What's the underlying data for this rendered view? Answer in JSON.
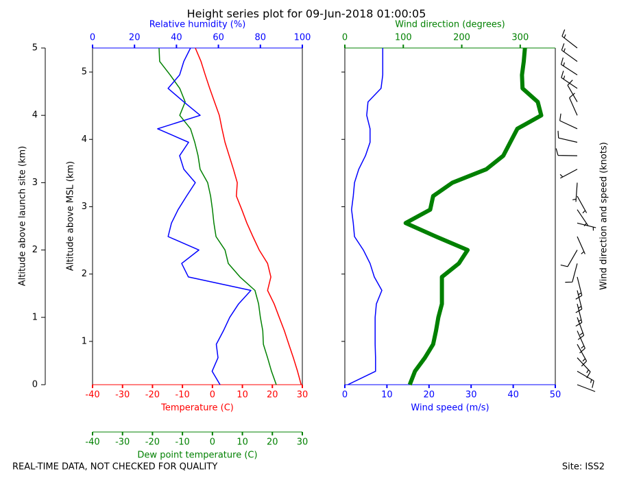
{
  "title": "Height series plot for 09-Jun-2018 01:00:05",
  "notes": {
    "left": "REAL-TIME DATA, NOT CHECKED FOR QUALITY",
    "right": "Site: ISS2"
  },
  "chart_data": [
    {
      "type": "line",
      "y": [
        0,
        0.2,
        0.4,
        0.6,
        0.8,
        1.0,
        1.2,
        1.4,
        1.6,
        1.8,
        2.0,
        2.2,
        2.4,
        2.6,
        2.8,
        3.0,
        3.2,
        3.4,
        3.6,
        3.8,
        4.0,
        4.2,
        4.4,
        4.6,
        4.8,
        5.0
      ],
      "ylabel": "Altitude above launch site (km)",
      "ylim": [
        0,
        5
      ],
      "yticks": [
        0,
        1,
        2,
        3,
        4,
        5
      ],
      "y2label": "Altitude above MSL (km)",
      "y2lim": [
        0.357,
        5.357
      ],
      "y2ticks": [
        1,
        2,
        3,
        4,
        5
      ],
      "axes": [
        {
          "label": "Temperature (C)",
          "position": "bottom",
          "color": "#ff0000",
          "xlim": [
            -40,
            30
          ],
          "xticks": [
            -40,
            -30,
            -20,
            -10,
            0,
            10,
            20,
            30
          ]
        },
        {
          "label": "Relative humidity (%)",
          "position": "top",
          "color": "#0000ff",
          "xlim": [
            0,
            100
          ],
          "xticks": [
            0,
            20,
            40,
            60,
            80,
            100
          ]
        },
        {
          "label": "Dew point temperature (C)",
          "position": "below",
          "color": "#008000",
          "xlim": [
            -40,
            30
          ],
          "xticks": [
            -40,
            -30,
            -20,
            -10,
            0,
            10,
            20,
            30
          ]
        }
      ],
      "series": [
        {
          "axis": 0,
          "color": "#ff0000",
          "values": [
            29.6,
            28.4,
            27,
            25.5,
            24,
            22.3,
            20.6,
            18.4,
            19.5,
            18.4,
            15.6,
            13.5,
            11.5,
            9.8,
            8,
            8.3,
            7,
            5.6,
            4.2,
            3.2,
            2.3,
            0.7,
            -0.9,
            -2.4,
            -3.8,
            -5.7
          ]
        },
        {
          "axis": 2,
          "color": "#008000",
          "values": [
            21.3,
            19.7,
            18.4,
            17,
            16.8,
            16,
            15.4,
            14.2,
            9.2,
            5.3,
            4.2,
            1.2,
            0.5,
            0,
            -0.6,
            -1.6,
            -4.1,
            -4.8,
            -5.9,
            -7.3,
            -10.9,
            -9.1,
            -10.9,
            -14.1,
            -17.6,
            -17.8
          ]
        },
        {
          "axis": 1,
          "color": "#0000ff",
          "values": [
            60.8,
            57,
            59.8,
            59,
            62.4,
            65.4,
            69.6,
            75.5,
            45.7,
            42.5,
            50.7,
            36,
            37.6,
            40.8,
            44.8,
            49,
            43.5,
            41.5,
            45.8,
            31,
            51.3,
            43.5,
            36,
            41.5,
            43.5,
            46.7
          ]
        }
      ]
    },
    {
      "type": "line",
      "y": [
        0,
        0.2,
        0.4,
        0.6,
        0.8,
        1.0,
        1.2,
        1.4,
        1.6,
        1.8,
        2.0,
        2.2,
        2.4,
        2.6,
        2.8,
        3.0,
        3.2,
        3.4,
        3.6,
        3.8,
        4.0,
        4.2,
        4.4,
        4.6,
        4.8,
        5.0
      ],
      "ylim": [
        0,
        5
      ],
      "barb_label": "Wind direction and speed (knots)",
      "axes": [
        {
          "label": "Wind speed (m/s)",
          "position": "bottom",
          "color": "#0000ff",
          "xlim": [
            0,
            50
          ],
          "xticks": [
            0,
            10,
            20,
            30,
            40,
            50
          ]
        },
        {
          "label": "Wind direction (degrees)",
          "position": "top",
          "color": "#008000",
          "xlim": [
            0,
            360
          ],
          "xticks": [
            0,
            100,
            200,
            300
          ]
        }
      ],
      "series": [
        {
          "axis": 0,
          "color": "#0000ff",
          "width": 1.5,
          "values": [
            0.7,
            7.3,
            7.3,
            7.2,
            7.2,
            7.2,
            7.5,
            8.8,
            7,
            6,
            4.4,
            2.3,
            2,
            1.6,
            2,
            2.3,
            3.3,
            4.9,
            6,
            6,
            5.2,
            5.5,
            8.6,
            9,
            9,
            9
          ]
        },
        {
          "axis": 1,
          "color": "#008000",
          "width": 6,
          "values": [
            111,
            120,
            137,
            151,
            156,
            160,
            166,
            166,
            166,
            195,
            210,
            156,
            104,
            146,
            151,
            184,
            242,
            271,
            283,
            295,
            336,
            330,
            304,
            303,
            306,
            308
          ]
        }
      ]
    }
  ]
}
